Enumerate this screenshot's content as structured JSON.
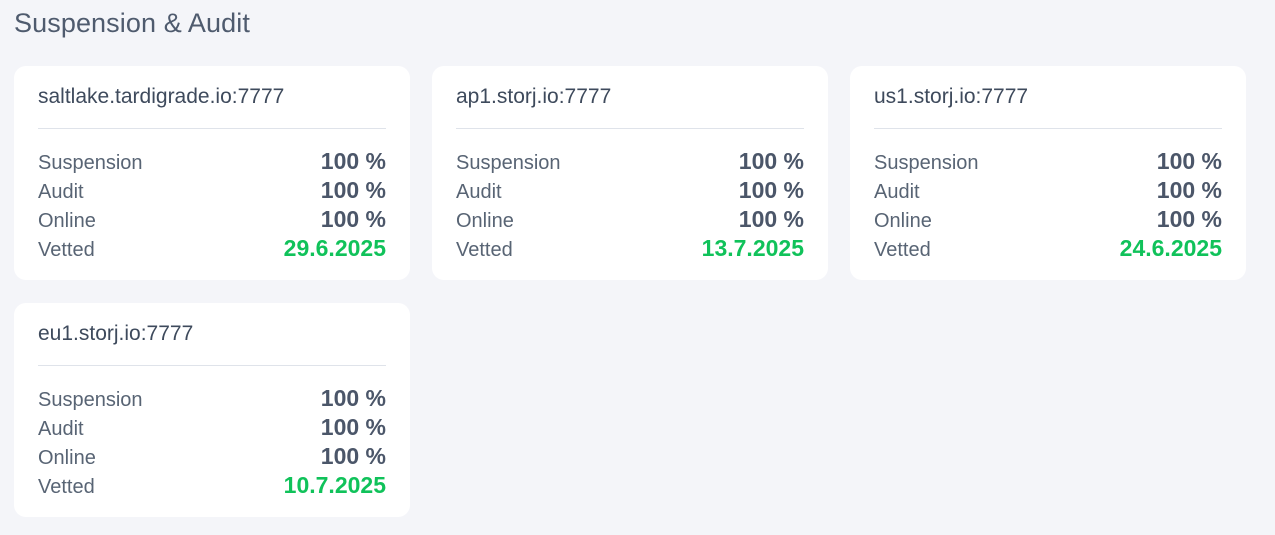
{
  "section": {
    "title": "Suspension & Audit"
  },
  "satellites": [
    {
      "host": "saltlake.tardigrade.io:7777",
      "stats": {
        "suspension_label": "Suspension",
        "suspension_value": "100 %",
        "audit_label": "Audit",
        "audit_value": "100 %",
        "online_label": "Online",
        "online_value": "100 %",
        "vetted_label": "Vetted",
        "vetted_value": "29.6.2025"
      }
    },
    {
      "host": "ap1.storj.io:7777",
      "stats": {
        "suspension_label": "Suspension",
        "suspension_value": "100 %",
        "audit_label": "Audit",
        "audit_value": "100 %",
        "online_label": "Online",
        "online_value": "100 %",
        "vetted_label": "Vetted",
        "vetted_value": "13.7.2025"
      }
    },
    {
      "host": "us1.storj.io:7777",
      "stats": {
        "suspension_label": "Suspension",
        "suspension_value": "100 %",
        "audit_label": "Audit",
        "audit_value": "100 %",
        "online_label": "Online",
        "online_value": "100 %",
        "vetted_label": "Vetted",
        "vetted_value": "24.6.2025"
      }
    },
    {
      "host": "eu1.storj.io:7777",
      "stats": {
        "suspension_label": "Suspension",
        "suspension_value": "100 %",
        "audit_label": "Audit",
        "audit_value": "100 %",
        "online_label": "Online",
        "online_value": "100 %",
        "vetted_label": "Vetted",
        "vetted_value": "10.7.2025"
      }
    }
  ],
  "colors": {
    "background": "#f4f5f9",
    "card": "#ffffff",
    "vetted_accent": "#10c25a",
    "text": "#586474"
  }
}
